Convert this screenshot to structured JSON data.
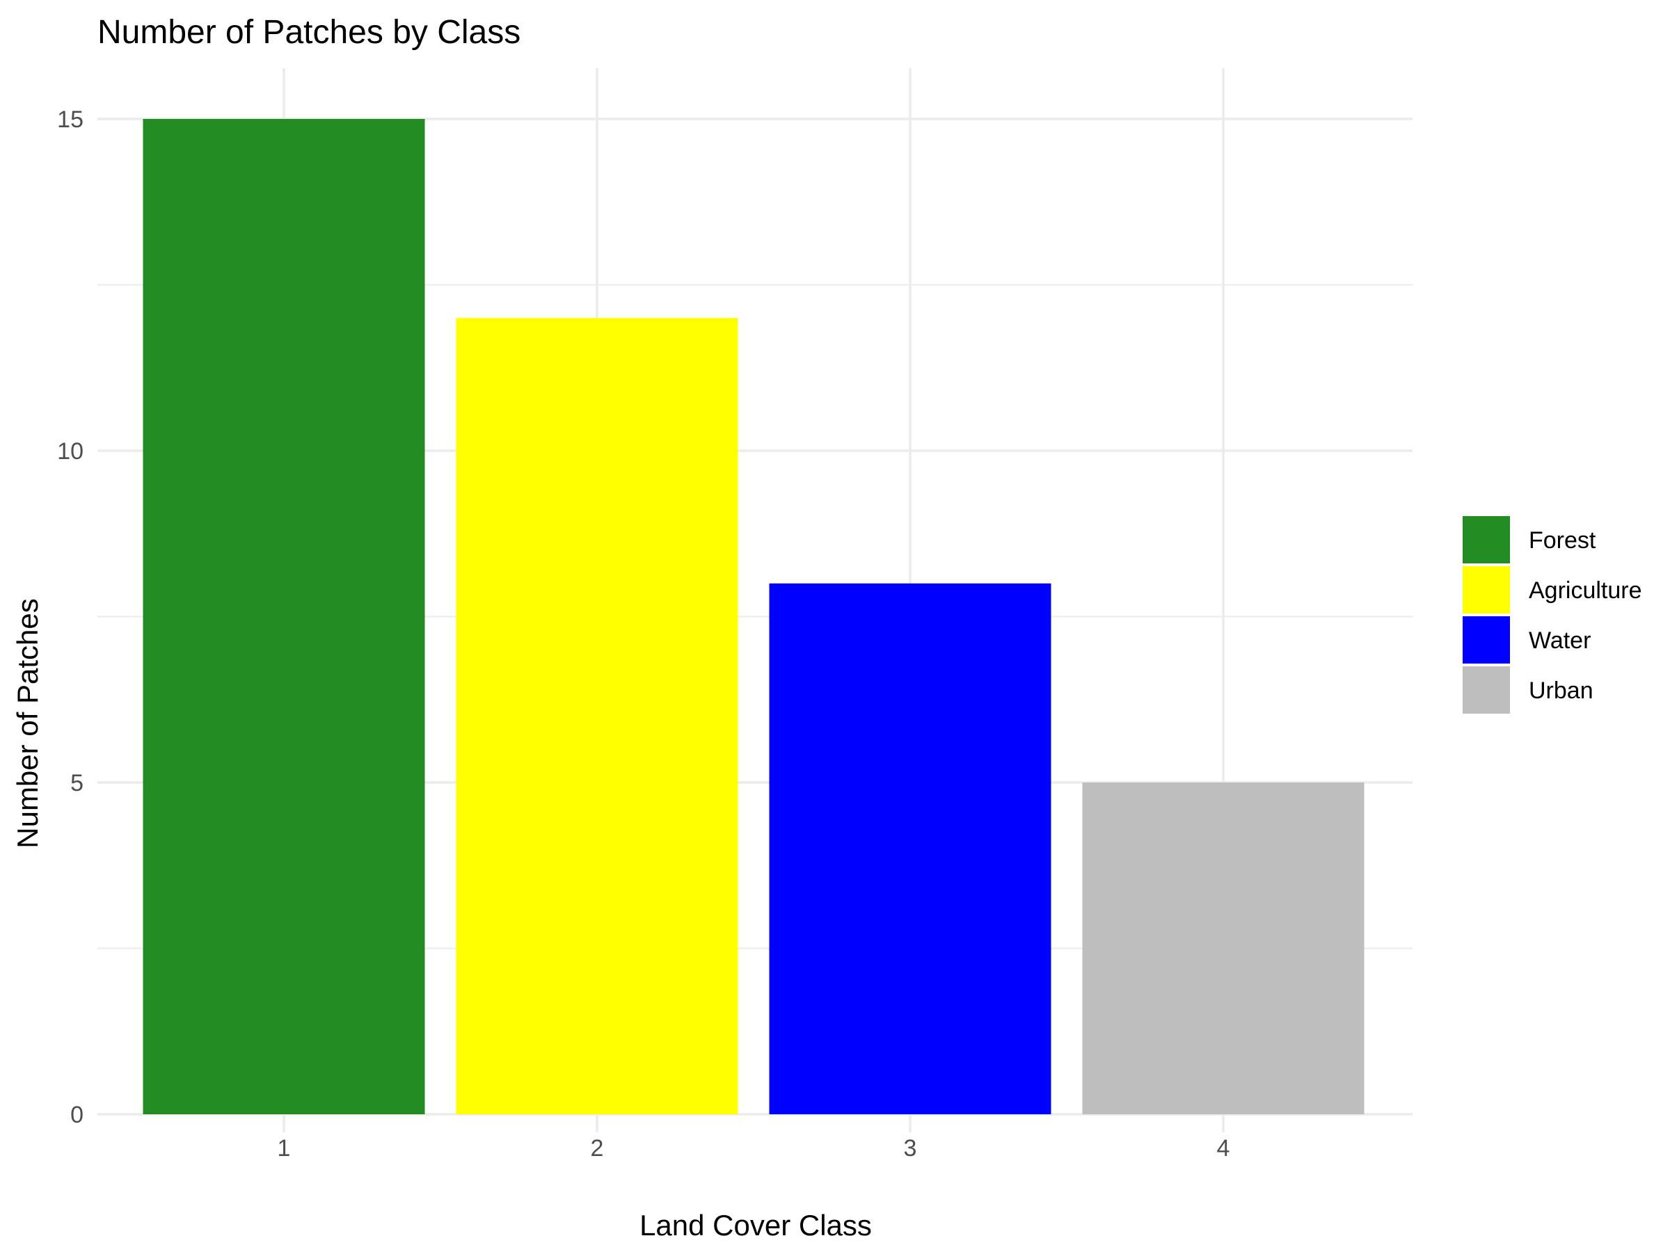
{
  "chart_data": {
    "type": "bar",
    "title": "Number of Patches by Class",
    "xlabel": "Land Cover Class",
    "ylabel": "Number of Patches",
    "categories": [
      "1",
      "2",
      "3",
      "4"
    ],
    "values": [
      15,
      12,
      8,
      5
    ],
    "series_labels": [
      "Forest",
      "Agriculture",
      "Water",
      "Urban"
    ],
    "colors": [
      "#228B22",
      "#FFFF00",
      "#0000FF",
      "#BEBEBE"
    ],
    "ylim": [
      0,
      15.75
    ],
    "yticks": [
      0,
      5,
      10,
      15
    ],
    "grid": true,
    "legend_position": "right"
  }
}
